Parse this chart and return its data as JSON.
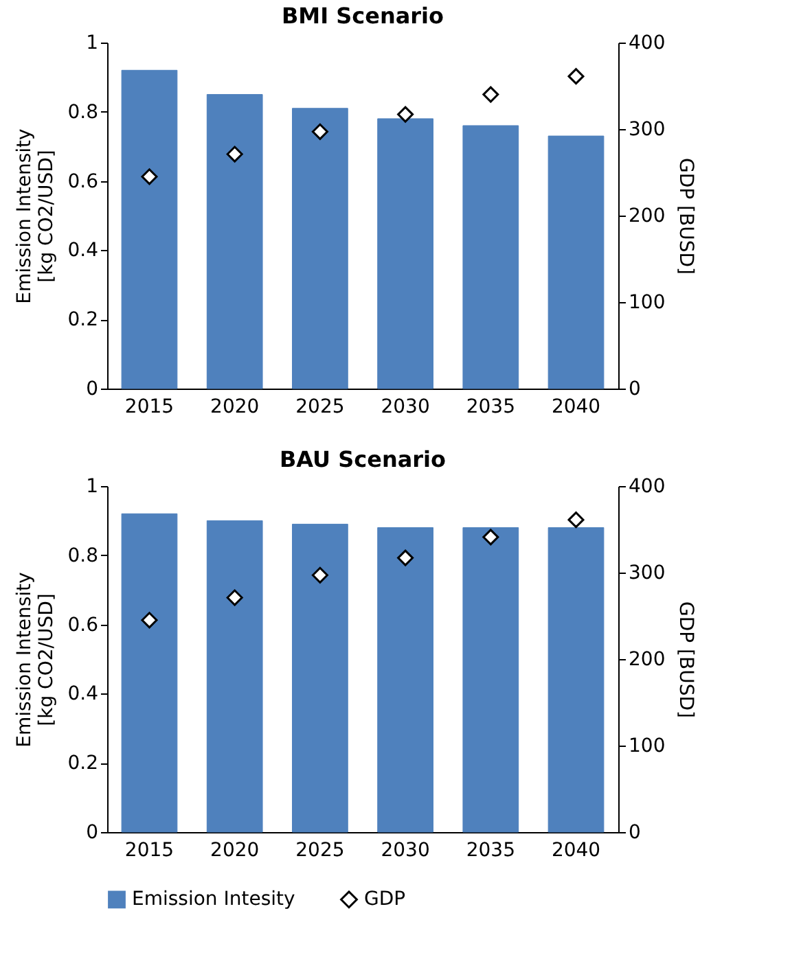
{
  "chart_data": [
    {
      "type": "bar",
      "title": "BMI Scenario",
      "categories": [
        "2015",
        "2020",
        "2025",
        "2030",
        "2035",
        "2040"
      ],
      "ylabel": "Emission Intensity\n[kg CO2/USD]",
      "y2label": "GDP [BUSD]",
      "ylim": [
        0,
        1
      ],
      "yticks": [
        0,
        0.2,
        0.4,
        0.6,
        0.8,
        1
      ],
      "y2lim": [
        0,
        400
      ],
      "y2ticks": [
        0,
        100,
        200,
        300,
        400
      ],
      "legend": "bottom",
      "series": [
        {
          "name": "Emission Intesity",
          "color": "#4f81bd",
          "values": [
            0.92,
            0.85,
            0.81,
            0.78,
            0.76,
            0.73
          ]
        },
        {
          "name": "GDP",
          "type": "scatter",
          "axis": "y2",
          "marker": "diamond",
          "color": "#ffffff",
          "values": [
            245,
            271,
            297,
            317,
            340,
            361
          ]
        }
      ]
    },
    {
      "type": "bar",
      "title": "BAU Scenario",
      "categories": [
        "2015",
        "2020",
        "2025",
        "2030",
        "2035",
        "2040"
      ],
      "ylabel": "Emission Intensity\n[kg CO2/USD]",
      "y2label": "GDP [BUSD]",
      "ylim": [
        0,
        1
      ],
      "yticks": [
        0,
        0.2,
        0.4,
        0.6,
        0.8,
        1
      ],
      "y2lim": [
        0,
        400
      ],
      "y2ticks": [
        0,
        100,
        200,
        300,
        400
      ],
      "legend": "bottom",
      "series": [
        {
          "name": "Emission Intesity",
          "color": "#4f81bd",
          "values": [
            0.92,
            0.9,
            0.89,
            0.88,
            0.88,
            0.88
          ]
        },
        {
          "name": "GDP",
          "type": "scatter",
          "axis": "y2",
          "marker": "diamond",
          "color": "#ffffff",
          "values": [
            245,
            271,
            297,
            317,
            341,
            361
          ]
        }
      ]
    }
  ]
}
